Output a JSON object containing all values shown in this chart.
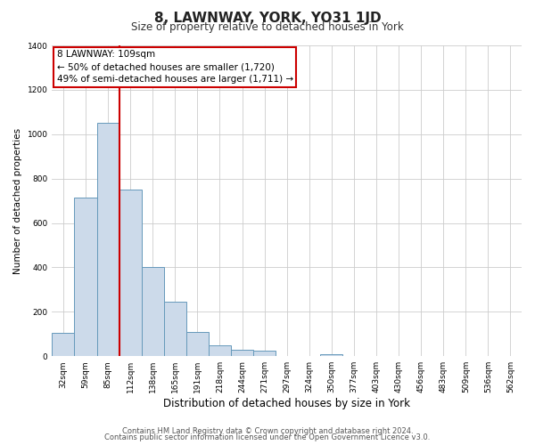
{
  "title": "8, LAWNWAY, YORK, YO31 1JD",
  "subtitle": "Size of property relative to detached houses in York",
  "xlabel": "Distribution of detached houses by size in York",
  "ylabel": "Number of detached properties",
  "bin_labels": [
    "32sqm",
    "59sqm",
    "85sqm",
    "112sqm",
    "138sqm",
    "165sqm",
    "191sqm",
    "218sqm",
    "244sqm",
    "271sqm",
    "297sqm",
    "324sqm",
    "350sqm",
    "377sqm",
    "403sqm",
    "430sqm",
    "456sqm",
    "483sqm",
    "509sqm",
    "536sqm",
    "562sqm"
  ],
  "bar_heights": [
    105,
    715,
    1050,
    750,
    400,
    245,
    110,
    50,
    28,
    25,
    0,
    0,
    10,
    0,
    0,
    0,
    0,
    0,
    0,
    0,
    0
  ],
  "bar_color": "#ccdaea",
  "bar_edge_color": "#6699bb",
  "vline_x_index": 3,
  "vline_color": "#cc0000",
  "annotation_text": "8 LAWNWAY: 109sqm\n← 50% of detached houses are smaller (1,720)\n49% of semi-detached houses are larger (1,711) →",
  "annotation_box_edge_color": "#cc0000",
  "annotation_box_face_color": "#ffffff",
  "ylim": [
    0,
    1400
  ],
  "yticks": [
    0,
    200,
    400,
    600,
    800,
    1000,
    1200,
    1400
  ],
  "footer_line1": "Contains HM Land Registry data © Crown copyright and database right 2024.",
  "footer_line2": "Contains public sector information licensed under the Open Government Licence v3.0.",
  "background_color": "#ffffff",
  "grid_color": "#cccccc",
  "title_fontsize": 11,
  "subtitle_fontsize": 8.5,
  "xlabel_fontsize": 8.5,
  "ylabel_fontsize": 7.5,
  "tick_fontsize": 6.5,
  "annot_fontsize": 7.5,
  "footer_fontsize": 6.0
}
